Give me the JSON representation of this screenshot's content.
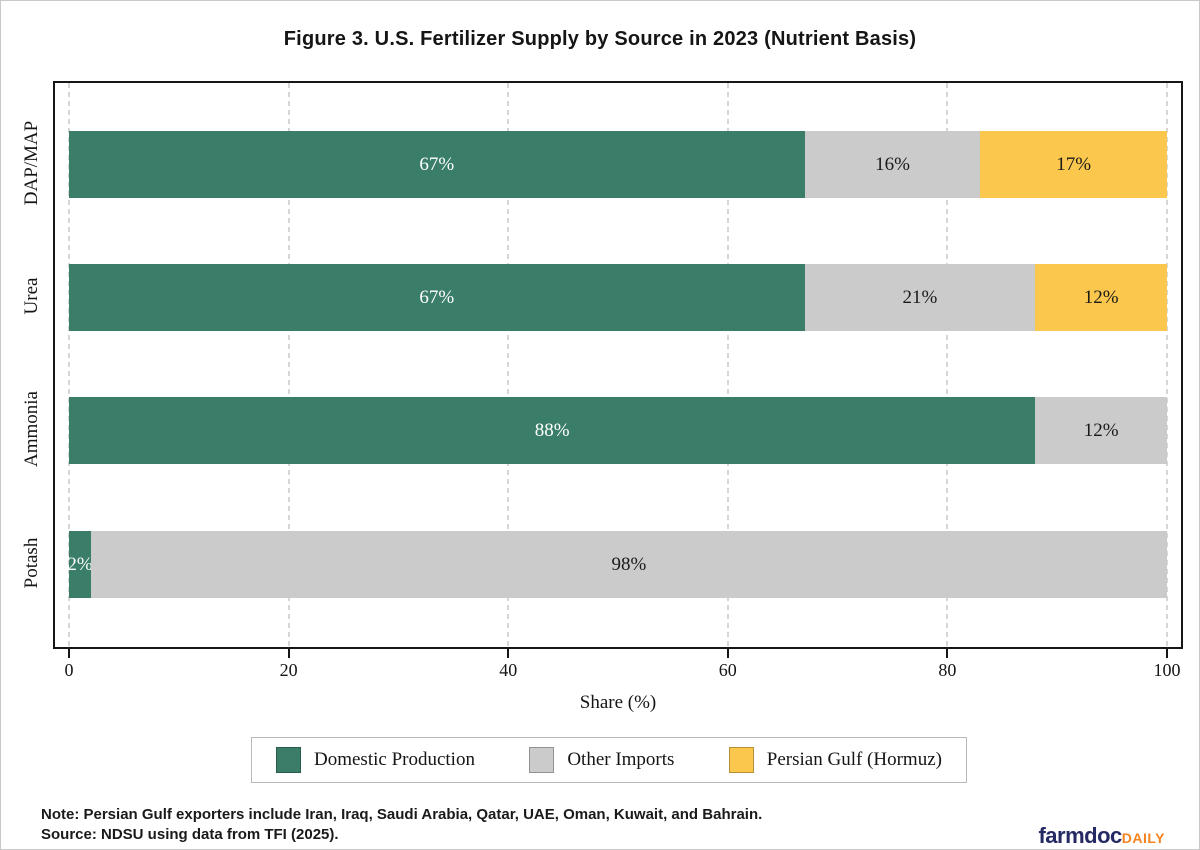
{
  "title": "Figure 3. U.S. Fertilizer Supply by Source in 2023 (Nutrient Basis)",
  "chart_data": {
    "type": "bar",
    "orientation": "horizontal",
    "stacked": true,
    "categories": [
      "DAP/MAP",
      "Urea",
      "Ammonia",
      "Potash"
    ],
    "series": [
      {
        "name": "Domestic Production",
        "color": "#3a7d68",
        "label_color": "#ffffff",
        "values": [
          67,
          67,
          88,
          2
        ]
      },
      {
        "name": "Other Imports",
        "color": "#cbcbcb",
        "label_color": "#1a1a1a",
        "values": [
          16,
          21,
          12,
          98
        ]
      },
      {
        "name": "Persian Gulf (Hormuz)",
        "color": "#fbc84d",
        "label_color": "#1a1a1a",
        "values": [
          17,
          12,
          0,
          0
        ]
      }
    ],
    "bar_label_suffix": "%",
    "xlabel": "Share (%)",
    "xlim": [
      0,
      100
    ],
    "xticks": [
      0,
      20,
      40,
      60,
      80,
      100
    ],
    "grid": "dashed-vertical",
    "legend_position": "bottom",
    "frame_color": "#161616",
    "gridline_color": "#d6d6d6"
  },
  "footer": {
    "note": "Note: Persian Gulf exporters include Iran, Iraq, Saudi Arabia, Qatar, UAE, Oman, Kuwait, and Bahrain.",
    "source": "Source: NDSU using data from TFI (2025).",
    "logo": {
      "part1": "farmdoc",
      "part1_color": "#252a64",
      "part2": "DAILY",
      "part2_color": "#f5821f"
    }
  }
}
